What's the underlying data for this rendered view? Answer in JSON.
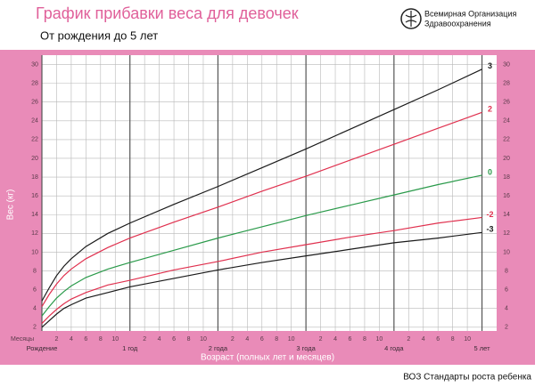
{
  "chart_data": {
    "type": "line",
    "title": "График прибавки веса для девочек",
    "subtitle": "От рождения до 5 лет",
    "organization": [
      "Всемирная Организация",
      "Здравоохранения"
    ],
    "footer": "ВОЗ Стандарты роста ребенка",
    "ylabel": "Вес (кг)",
    "xlabel": "Возраст (полных лет и месяцев)",
    "x_unit_label": "Месяцы",
    "x": [
      0,
      1,
      2,
      3,
      4,
      6,
      9,
      12,
      18,
      24,
      30,
      36,
      42,
      48,
      54,
      60
    ],
    "series": [
      {
        "name": "3",
        "color": "#1a1a1a",
        "values": [
          4.8,
          6.2,
          7.5,
          8.5,
          9.3,
          10.6,
          12.0,
          13.1,
          15.1,
          17.0,
          19.0,
          21.0,
          23.1,
          25.2,
          27.3,
          29.5
        ]
      },
      {
        "name": "2",
        "color": "#e0304e",
        "values": [
          4.2,
          5.5,
          6.6,
          7.5,
          8.2,
          9.3,
          10.5,
          11.5,
          13.2,
          14.8,
          16.5,
          18.1,
          19.8,
          21.5,
          23.2,
          24.9
        ]
      },
      {
        "name": "0",
        "color": "#2a9a4a",
        "values": [
          3.2,
          4.2,
          5.1,
          5.8,
          6.4,
          7.3,
          8.2,
          8.9,
          10.2,
          11.5,
          12.7,
          13.9,
          15.0,
          16.1,
          17.2,
          18.2
        ]
      },
      {
        "name": "-2",
        "color": "#e0304e",
        "values": [
          2.4,
          3.2,
          3.9,
          4.5,
          5.0,
          5.7,
          6.5,
          7.0,
          8.1,
          9.0,
          10.0,
          10.8,
          11.6,
          12.3,
          13.1,
          13.7
        ]
      },
      {
        "name": "-3",
        "color": "#1a1a1a",
        "values": [
          2.0,
          2.7,
          3.4,
          4.0,
          4.4,
          5.1,
          5.7,
          6.3,
          7.2,
          8.1,
          8.9,
          9.6,
          10.3,
          11.0,
          11.5,
          12.1
        ]
      }
    ],
    "xlim": [
      0,
      62
    ],
    "ylim": [
      1.6,
      31
    ],
    "yticks": [
      2,
      4,
      6,
      8,
      10,
      12,
      14,
      16,
      18,
      20,
      22,
      24,
      26,
      28,
      30
    ],
    "xticks": [
      2,
      4,
      6,
      8,
      10,
      {
        "value": 14,
        "label": "2"
      },
      {
        "value": 16,
        "label": "4"
      },
      {
        "value": 18,
        "label": "6"
      },
      {
        "value": 20,
        "label": "8"
      },
      {
        "value": 22,
        "label": "10"
      },
      {
        "value": 26,
        "label": "2"
      },
      {
        "value": 28,
        "label": "4"
      },
      {
        "value": 30,
        "label": "6"
      },
      {
        "value": 32,
        "label": "8"
      },
      {
        "value": 34,
        "label": "10"
      },
      {
        "value": 38,
        "label": "2"
      },
      {
        "value": 40,
        "label": "4"
      },
      {
        "value": 42,
        "label": "6"
      },
      {
        "value": 44,
        "label": "8"
      },
      {
        "value": 46,
        "label": "10"
      },
      {
        "value": 50,
        "label": "2"
      },
      {
        "value": 52,
        "label": "4"
      },
      {
        "value": 54,
        "label": "6"
      },
      {
        "value": 56,
        "label": "8"
      },
      {
        "value": 58,
        "label": "10"
      }
    ],
    "xmajorticks": [
      {
        "value": 0,
        "label": "Рождение"
      },
      {
        "value": 12,
        "label": "1 год"
      },
      {
        "value": 24,
        "label": "2 года"
      },
      {
        "value": 36,
        "label": "3 года"
      },
      {
        "value": 48,
        "label": "4 года"
      },
      {
        "value": 60,
        "label": "5 лет"
      }
    ],
    "grid": true
  }
}
